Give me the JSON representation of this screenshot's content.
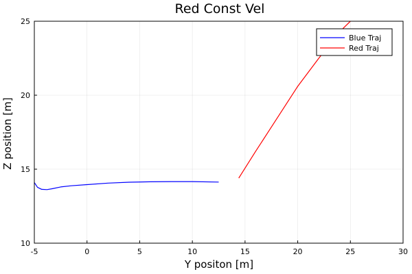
{
  "chart_data": {
    "type": "line",
    "title": "Red Const Vel",
    "xlabel": "Y positon [m]",
    "ylabel": "Z position [m]",
    "xlim": [
      -5,
      30
    ],
    "ylim": [
      10,
      25
    ],
    "xticks": [
      "-5",
      "0",
      "5",
      "10",
      "15",
      "20",
      "25",
      "30"
    ],
    "yticks": [
      "10",
      "15",
      "20",
      "25"
    ],
    "grid": true,
    "legend": "top-right",
    "series": [
      {
        "name": "Blue Traj",
        "color": "#0000ff",
        "points": [
          [
            -5.0,
            14.1
          ],
          [
            -4.7,
            13.78
          ],
          [
            -4.3,
            13.64
          ],
          [
            -3.8,
            13.62
          ],
          [
            -3.3,
            13.68
          ],
          [
            -2.5,
            13.8
          ],
          [
            -1.5,
            13.88
          ],
          [
            0.0,
            13.96
          ],
          [
            2.0,
            14.06
          ],
          [
            4.0,
            14.12
          ],
          [
            6.0,
            14.15
          ],
          [
            8.0,
            14.16
          ],
          [
            10.0,
            14.16
          ],
          [
            12.5,
            14.13
          ]
        ]
      },
      {
        "name": "Red Traj",
        "color": "#ff0000",
        "points": [
          [
            14.4,
            14.4
          ],
          [
            16.0,
            16.2
          ],
          [
            18.0,
            18.4
          ],
          [
            20.0,
            20.6
          ],
          [
            22.0,
            22.5
          ],
          [
            24.0,
            24.3
          ],
          [
            25.0,
            25.0
          ]
        ]
      }
    ]
  }
}
